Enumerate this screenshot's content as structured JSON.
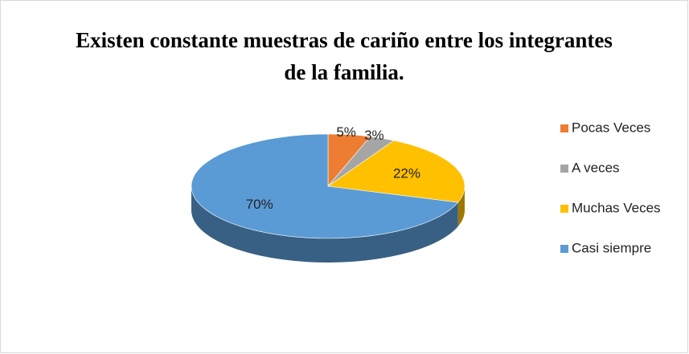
{
  "chart_data": {
    "type": "pie",
    "title": "Existen constante muestras de cariño entre los integrantes de la familia.",
    "categories": [
      "Pocas Veces",
      "A veces",
      "Muchas Veces",
      "Casi siempre"
    ],
    "values": [
      5,
      3,
      22,
      70
    ],
    "value_labels": [
      "5%",
      "3%",
      "22%",
      "70%"
    ],
    "colors": [
      "#ED7D31",
      "#A5A5A5",
      "#FFC000",
      "#5B9BD5"
    ],
    "legend": "right"
  }
}
